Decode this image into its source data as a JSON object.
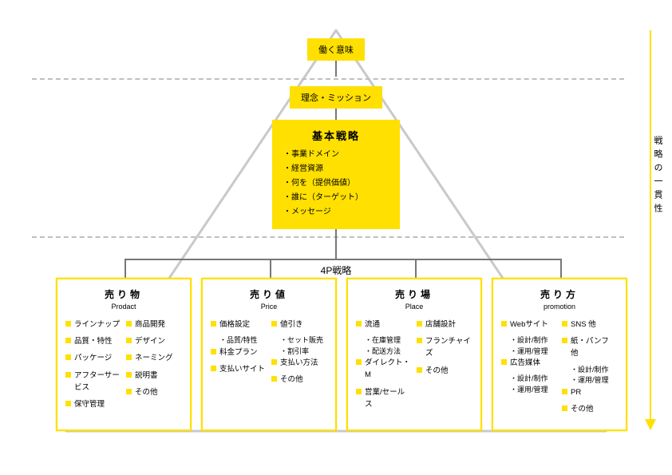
{
  "colors": {
    "accent": "#ffe000",
    "line": "#777777",
    "dash": "#bfbfbf",
    "bg": "#ffffff"
  },
  "arrow_label": "戦略の一貫性",
  "top1": "働く意味",
  "top2": "理念・ミッション",
  "strategy": {
    "title": "基本戦略",
    "items": [
      "事業ドメイン",
      "経営資源",
      "何を（提供価値）",
      "誰に（ターゲット）",
      "メッセージ"
    ]
  },
  "fourp_label": "4P戦略",
  "panels": [
    {
      "title": "売り物",
      "sub": "Prodact",
      "col1": [
        {
          "t": "ラインナップ"
        },
        {
          "t": "品質・特性"
        },
        {
          "t": "パッケージ"
        },
        {
          "t": "アフターサービス"
        },
        {
          "t": "保守管理"
        }
      ],
      "col2": [
        {
          "t": "商品開発"
        },
        {
          "t": "デザイン"
        },
        {
          "t": "ネーミング"
        },
        {
          "t": "説明書"
        },
        {
          "t": "その他"
        }
      ]
    },
    {
      "title": "売り値",
      "sub": "Price",
      "col1": [
        {
          "t": "価格設定",
          "subs": [
            "品質/特性"
          ]
        },
        {
          "t": "料金プラン"
        },
        {
          "t": "支払いサイト"
        }
      ],
      "col2": [
        {
          "t": "値引き",
          "subs": [
            "セット販売",
            "割引率"
          ]
        },
        {
          "t": "支払い方法"
        },
        {
          "t": "その他"
        }
      ]
    },
    {
      "title": "売り場",
      "sub": "Place",
      "col1": [
        {
          "t": "流通",
          "subs": [
            "在庫管理",
            "配送方法"
          ]
        },
        {
          "t": "ダイレクト・M"
        },
        {
          "t": "営業/セールス"
        }
      ],
      "col2": [
        {
          "t": "店舗設計"
        },
        {
          "t": "フランチャイズ"
        },
        {
          "t": "その他"
        }
      ]
    },
    {
      "title": "売り方",
      "sub": "promotion",
      "col1": [
        {
          "t": "Webサイト",
          "subs": [
            "設計/制作",
            "運用/管理"
          ]
        },
        {
          "t": "広告媒体",
          "subs": [
            "設計/制作",
            "運用/管理"
          ]
        }
      ],
      "col2": [
        {
          "t": "SNS 他"
        },
        {
          "t": "紙・パンフ 他",
          "subs": [
            "設計/制作",
            "運用/管理"
          ]
        },
        {
          "t": "PR"
        },
        {
          "t": "その他"
        }
      ]
    }
  ]
}
